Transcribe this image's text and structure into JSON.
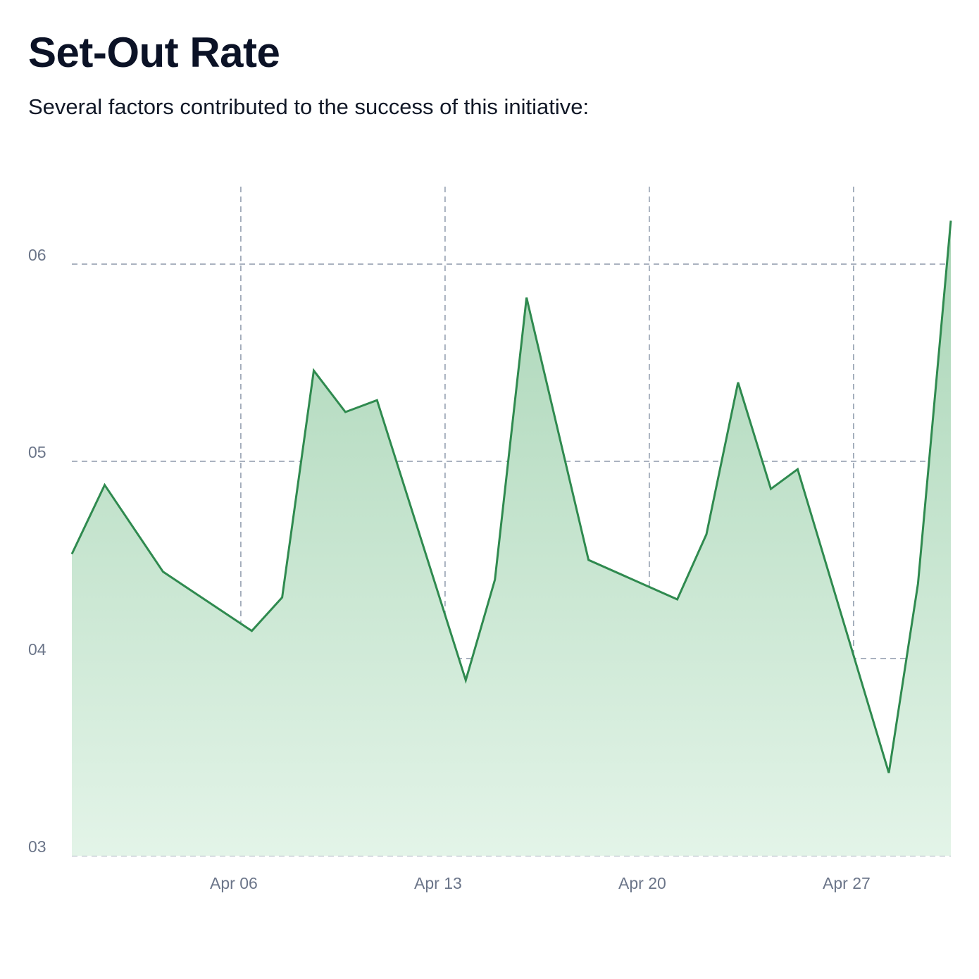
{
  "title": "Set-Out Rate",
  "subtitle": "Several factors contributed to the success of this initiative:",
  "chart_data": {
    "type": "area",
    "title": "Set-Out Rate",
    "xlabel": "",
    "ylabel": "",
    "x_format": "MM-DD HH:mm",
    "x": [
      "03-31 05:00",
      "04-01 08:00",
      "04-03 08:00",
      "04-06 09:00",
      "04-07 10:00",
      "04-08 12:00",
      "04-09 14:00",
      "04-10 16:00",
      "04-13 17:00",
      "04-14 17:00",
      "04-15 19:00",
      "04-17 22:00",
      "04-20 23:00",
      "04-21 23:00",
      "04-23 01:00",
      "04-24 04:00",
      "04-25 02:00",
      "04-28 05:00",
      "04-29 05:00",
      "04-30 08:00"
    ],
    "values": [
      4.53,
      4.88,
      4.44,
      4.14,
      4.31,
      5.46,
      5.25,
      5.31,
      3.89,
      4.4,
      5.83,
      4.5,
      4.3,
      4.63,
      5.4,
      4.86,
      4.96,
      3.42,
      4.38,
      6.22
    ],
    "xlim": [
      "03-31 05:00",
      "04-30 08:00"
    ],
    "ylim": [
      3,
      6.4
    ],
    "x_ticks": [
      {
        "at": "04-06 00:00",
        "label": "Apr 06"
      },
      {
        "at": "04-13 00:00",
        "label": "Apr 13"
      },
      {
        "at": "04-20 00:00",
        "label": "Apr 20"
      },
      {
        "at": "04-27 00:00",
        "label": "Apr 27"
      }
    ],
    "y_ticks": [
      {
        "at": 3,
        "label": "03"
      },
      {
        "at": 4,
        "label": "04"
      },
      {
        "at": 5,
        "label": "05"
      },
      {
        "at": 6,
        "label": "06"
      }
    ],
    "grid": true,
    "colors": {
      "line": "#2f8a4f",
      "fill_top": "#a9d5b6",
      "fill_bottom": "#e3f4e8",
      "grid": "#8d99ab",
      "tick_text": "#6b7589"
    }
  }
}
